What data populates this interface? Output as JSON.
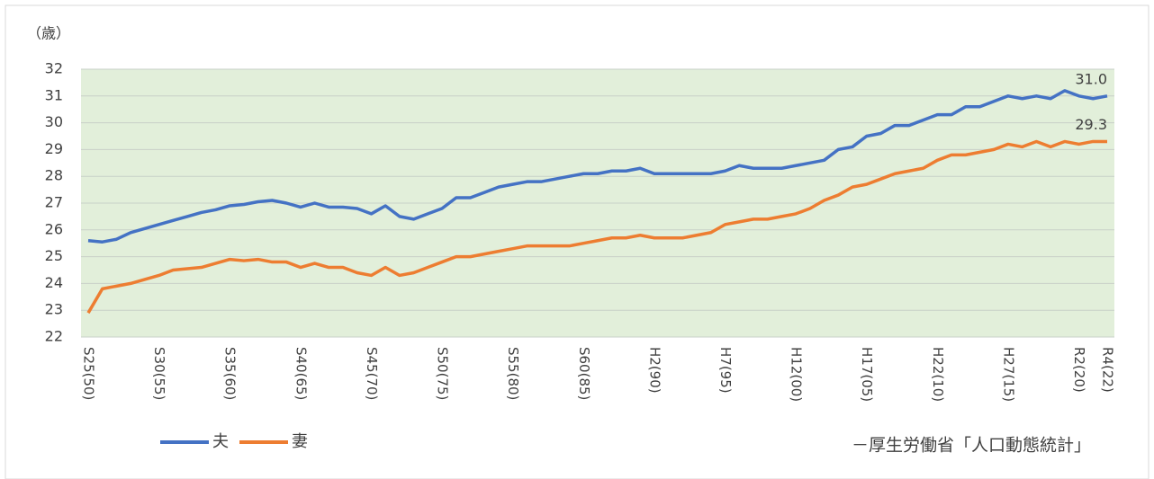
{
  "chart_data": {
    "type": "line",
    "y_label": "（歳）",
    "source": "－厚生労働省「人口動態統計」",
    "categories": [
      "S25(50)",
      null,
      null,
      null,
      null,
      "S30(55)",
      null,
      null,
      null,
      null,
      "S35(60)",
      null,
      null,
      null,
      null,
      "S40(65)",
      null,
      null,
      null,
      null,
      "S45(70)",
      null,
      null,
      null,
      null,
      "S50(75)",
      null,
      null,
      null,
      null,
      "S55(80)",
      null,
      null,
      null,
      null,
      "S60(85)",
      null,
      null,
      null,
      null,
      "H2(90)",
      null,
      null,
      null,
      null,
      "H7(95)",
      null,
      null,
      null,
      null,
      "H12(00)",
      null,
      null,
      null,
      null,
      "H17(05)",
      null,
      null,
      null,
      null,
      "H22(10)",
      null,
      null,
      null,
      null,
      "H27(15)",
      null,
      null,
      null,
      null,
      "R2(20)",
      null,
      "R4(22)"
    ],
    "series": [
      {
        "name": "夫",
        "color": "#4472c4",
        "values": [
          25.6,
          25.55,
          25.65,
          25.9,
          26.05,
          26.2,
          26.35,
          26.5,
          26.65,
          26.75,
          26.9,
          26.95,
          27.05,
          27.1,
          27.0,
          26.85,
          27.0,
          26.85,
          26.85,
          26.8,
          26.6,
          26.9,
          26.5,
          26.4,
          26.6,
          26.8,
          27.2,
          27.2,
          27.4,
          27.6,
          27.7,
          27.8,
          27.8,
          27.9,
          28.0,
          28.1,
          28.1,
          28.2,
          28.2,
          28.3,
          28.1,
          28.1,
          28.1,
          28.1,
          28.1,
          28.2,
          28.4,
          28.3,
          28.3,
          28.3,
          28.4,
          28.5,
          28.6,
          29.0,
          29.1,
          29.5,
          29.6,
          29.9,
          29.9,
          30.1,
          30.3,
          30.3,
          30.6,
          30.6,
          30.8,
          31.0,
          30.9,
          31.0,
          30.9,
          31.2,
          31.0,
          30.9,
          31.0
        ],
        "value_labels": [
          null,
          null,
          null,
          null,
          null,
          null,
          null,
          null,
          null,
          null,
          null,
          null,
          null,
          null,
          null,
          null,
          null,
          null,
          null,
          null,
          null,
          null,
          null,
          null,
          null,
          null,
          null,
          null,
          null,
          null,
          null,
          null,
          null,
          null,
          null,
          null,
          null,
          null,
          null,
          null,
          null,
          null,
          null,
          null,
          null,
          null,
          null,
          null,
          null,
          null,
          null,
          null,
          null,
          null,
          null,
          null,
          null,
          null,
          null,
          null,
          null,
          null,
          null,
          null,
          null,
          null,
          null,
          null,
          null,
          null,
          null,
          null,
          "31.0"
        ]
      },
      {
        "name": "妻",
        "color": "#ed7d31",
        "values": [
          22.9,
          23.8,
          23.9,
          24.0,
          24.15,
          24.3,
          24.5,
          24.55,
          24.6,
          24.75,
          24.9,
          24.85,
          24.9,
          24.8,
          24.8,
          24.6,
          24.75,
          24.6,
          24.6,
          24.4,
          24.3,
          24.6,
          24.3,
          24.4,
          24.6,
          24.8,
          25.0,
          25.0,
          25.1,
          25.2,
          25.3,
          25.4,
          25.4,
          25.4,
          25.4,
          25.5,
          25.6,
          25.7,
          25.7,
          25.8,
          25.7,
          25.7,
          25.7,
          25.8,
          25.9,
          26.2,
          26.3,
          26.4,
          26.4,
          26.5,
          26.6,
          26.8,
          27.1,
          27.3,
          27.6,
          27.7,
          27.9,
          28.1,
          28.2,
          28.3,
          28.6,
          28.8,
          28.8,
          28.9,
          29.0,
          29.2,
          29.1,
          29.3,
          29.1,
          29.3,
          29.2,
          29.3,
          29.3
        ],
        "value_labels": [
          null,
          null,
          null,
          null,
          null,
          null,
          null,
          null,
          null,
          null,
          null,
          null,
          null,
          null,
          null,
          null,
          null,
          null,
          null,
          null,
          null,
          null,
          null,
          null,
          null,
          null,
          null,
          null,
          null,
          null,
          null,
          null,
          null,
          null,
          null,
          null,
          null,
          null,
          null,
          null,
          null,
          null,
          null,
          null,
          null,
          null,
          null,
          null,
          null,
          null,
          null,
          null,
          null,
          null,
          null,
          null,
          null,
          null,
          null,
          null,
          null,
          null,
          null,
          null,
          null,
          null,
          null,
          null,
          null,
          null,
          null,
          null,
          "29.3"
        ]
      }
    ],
    "ylim": [
      22,
      32
    ],
    "yticks": [
      22,
      23,
      24,
      25,
      26,
      27,
      28,
      29,
      30,
      31,
      32
    ],
    "grid": true,
    "plot_background": "#e2efda",
    "legend": "bottom-left"
  }
}
